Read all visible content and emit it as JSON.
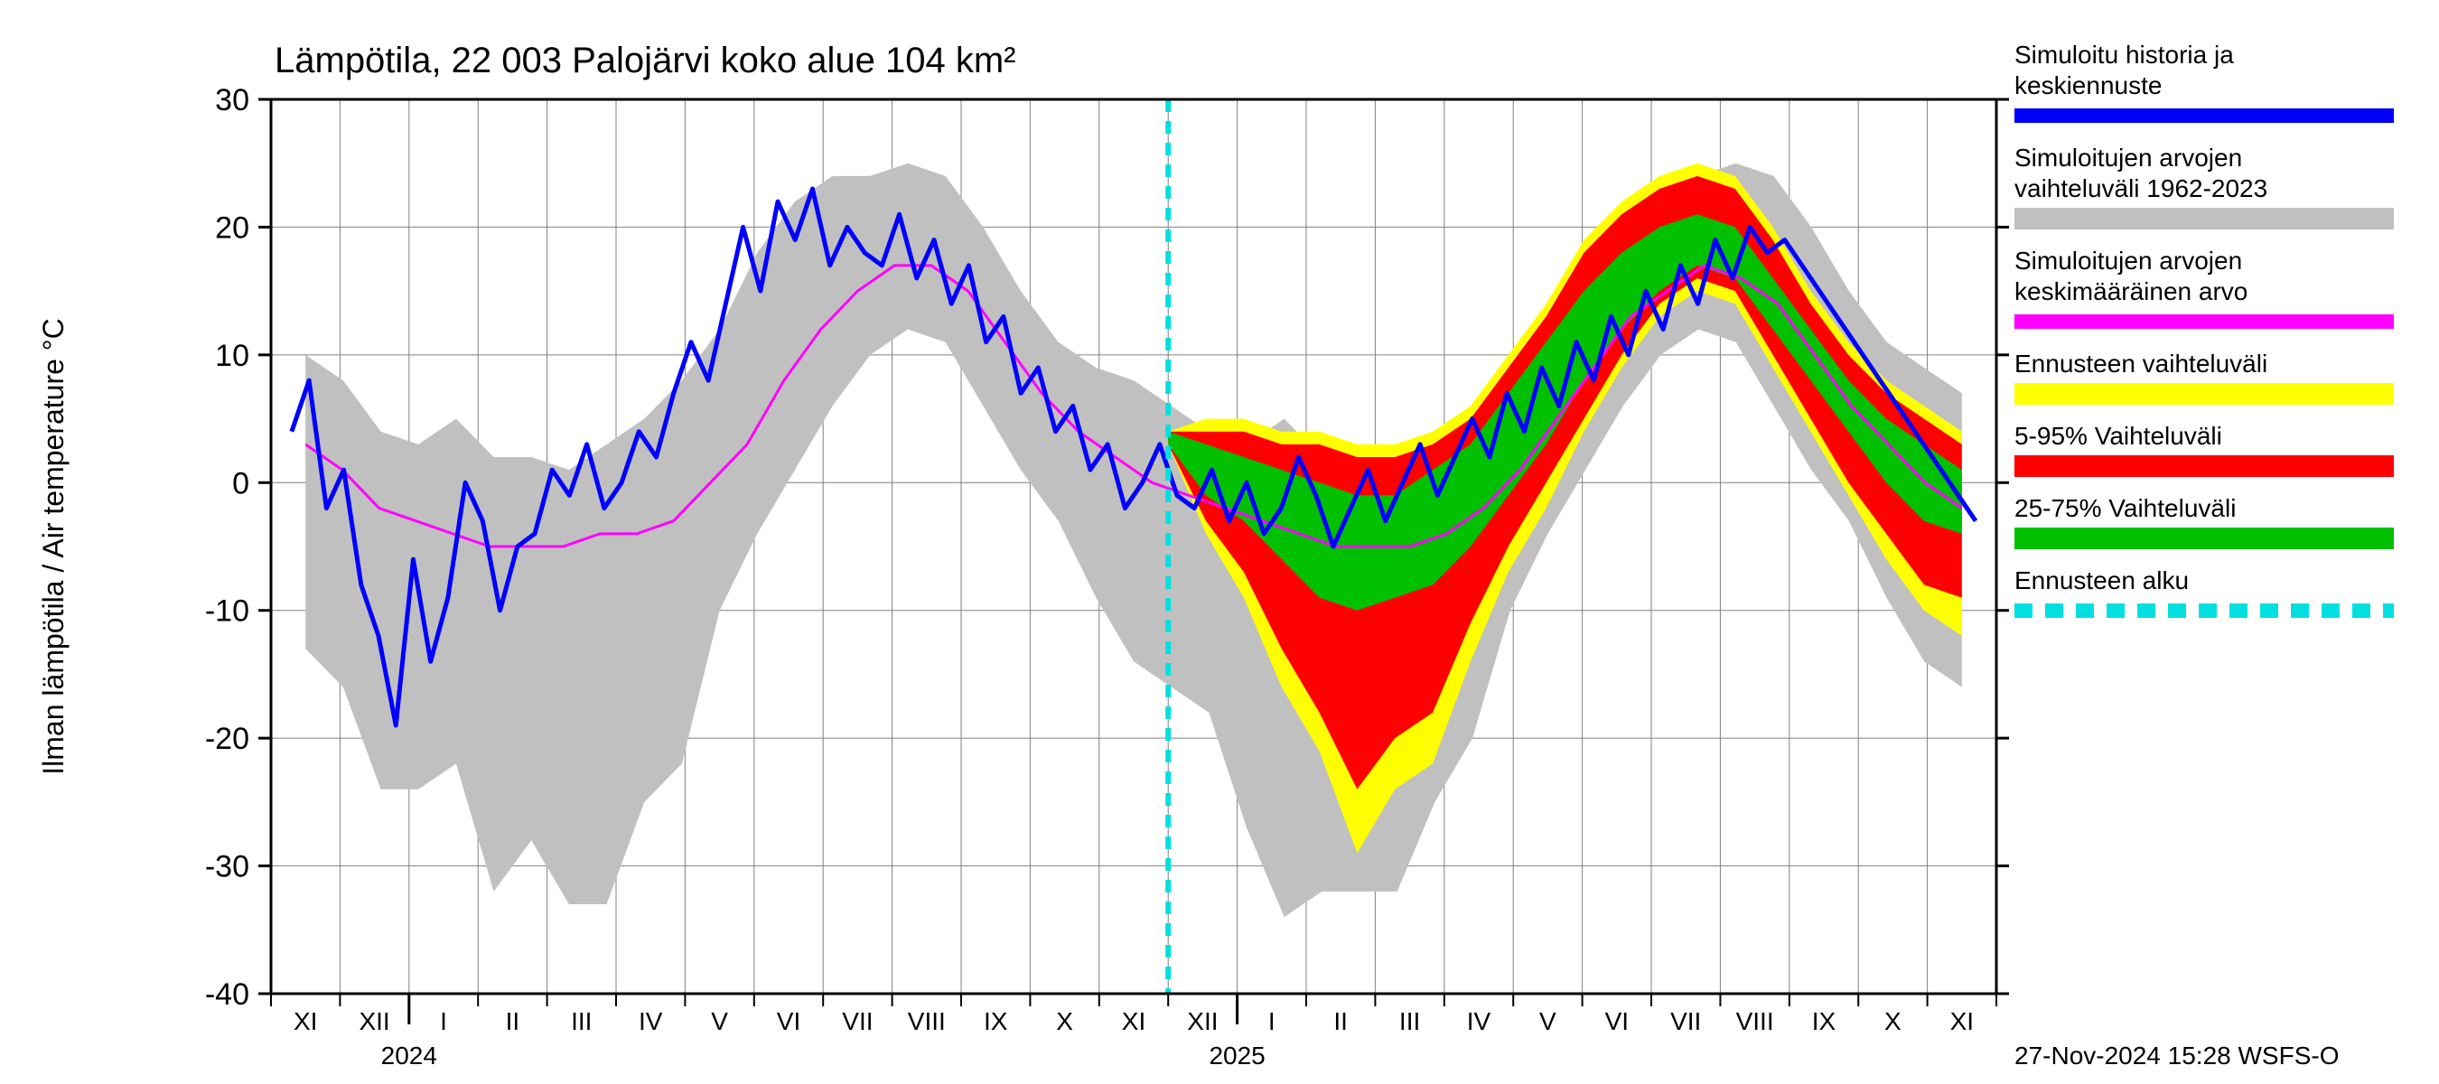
{
  "chart": {
    "type": "timeseries-band",
    "title": "Lämpötila, 22 003 Palojärvi koko alue 104 km²",
    "y_axis": {
      "label": "Ilman lämpötila / Air temperature    °C",
      "min": -40,
      "max": 30,
      "tick_step": 10,
      "ticks": [
        -40,
        -30,
        -20,
        -10,
        0,
        10,
        20,
        30
      ],
      "label_fontsize": 32,
      "tick_fontsize": 28
    },
    "x_axis": {
      "months": [
        "XI",
        "XII",
        "I",
        "II",
        "III",
        "IV",
        "V",
        "VI",
        "VII",
        "VIII",
        "IX",
        "X",
        "XI",
        "XII",
        "I",
        "II",
        "III",
        "IV",
        "V",
        "VI",
        "VII",
        "VIII",
        "IX",
        "X",
        "XI"
      ],
      "year_marks": [
        {
          "after_index": 2,
          "label": "2024"
        },
        {
          "after_index": 14,
          "label": "2025"
        }
      ],
      "tick_fontsize": 28
    },
    "forecast_start_index": 13,
    "grid": {
      "color": "#808080",
      "width": 1
    },
    "background_color": "#ffffff",
    "plot_border_color": "#000000",
    "colors": {
      "hist_range": "#c0c0c0",
      "forecast_range_outer": "#ffff00",
      "forecast_range_5_95": "#ff0000",
      "forecast_range_25_75": "#00c000",
      "mean_line": "#ff00ff",
      "sim_history_line": "#0000ff",
      "forecast_start_line": "#00e0e0"
    },
    "line_widths": {
      "mean_line": 3,
      "sim_history_line": 5,
      "forecast_start_line": 6
    },
    "series_hist_range": {
      "low": [
        -13,
        -16,
        -24,
        -24,
        -22,
        -32,
        -28,
        -33,
        -33,
        -25,
        -22,
        -10,
        -4,
        1,
        6,
        10,
        12,
        11,
        6,
        1,
        -3,
        -9,
        -14,
        -16,
        -18,
        -27,
        -34,
        -32,
        -32,
        -32,
        -25,
        -20,
        -10,
        -4,
        1,
        6,
        10,
        12,
        11,
        6,
        1,
        -3,
        -9,
        -14,
        -16
      ],
      "high": [
        10,
        8,
        4,
        3,
        5,
        2,
        2,
        1,
        3,
        5,
        8,
        12,
        18,
        22,
        24,
        24,
        25,
        24,
        20,
        15,
        11,
        9,
        8,
        6,
        4,
        3,
        5,
        2,
        2,
        1,
        3,
        5,
        8,
        12,
        18,
        22,
        24,
        24,
        25,
        24,
        20,
        15,
        11,
        9,
        7
      ]
    },
    "series_forecast_outer": {
      "low": [
        3,
        -4,
        -9,
        -16,
        -21,
        -29,
        -24,
        -22,
        -14,
        -7,
        -2,
        4,
        9,
        13,
        15,
        14,
        9,
        4,
        -1,
        -6,
        -10,
        -12
      ],
      "high": [
        4,
        5,
        5,
        4,
        4,
        3,
        3,
        4,
        6,
        10,
        14,
        19,
        22,
        24,
        25,
        24,
        20,
        15,
        11,
        8,
        6,
        4
      ]
    },
    "series_forecast_5_95": {
      "low": [
        3,
        -3,
        -7,
        -13,
        -18,
        -24,
        -20,
        -18,
        -11,
        -5,
        0,
        5,
        10,
        14,
        16,
        15,
        10,
        5,
        0,
        -4,
        -8,
        -9
      ],
      "high": [
        4,
        4,
        4,
        3,
        3,
        2,
        2,
        3,
        5,
        9,
        13,
        18,
        21,
        23,
        24,
        23,
        19,
        14,
        10,
        7,
        5,
        3
      ]
    },
    "series_forecast_25_75": {
      "low": [
        3,
        -1,
        -3,
        -6,
        -9,
        -10,
        -9,
        -8,
        -5,
        -1,
        3,
        8,
        12,
        15,
        17,
        16,
        12,
        8,
        4,
        0,
        -3,
        -4
      ],
      "high": [
        4,
        3,
        2,
        1,
        0,
        -1,
        -1,
        1,
        3,
        7,
        11,
        15,
        18,
        20,
        21,
        20,
        16,
        12,
        8,
        5,
        3,
        1
      ]
    },
    "series_mean": {
      "y": [
        3,
        1,
        -2,
        -3,
        -4,
        -5,
        -5,
        -5,
        -4,
        -4,
        -3,
        0,
        3,
        8,
        12,
        15,
        17,
        17,
        15,
        11,
        7,
        4,
        2,
        0,
        -1,
        -2,
        -3,
        -4,
        -5,
        -5,
        -5,
        -4,
        -2,
        1,
        5,
        9,
        13,
        15,
        17,
        16,
        14,
        10,
        6,
        3,
        0,
        -2
      ]
    },
    "series_sim_history": {
      "y": [
        4,
        8,
        -2,
        1,
        -8,
        -12,
        -19,
        -6,
        -14,
        -9,
        0,
        -3,
        -10,
        -5,
        -4,
        1,
        -1,
        3,
        -2,
        0,
        4,
        2,
        7,
        11,
        8,
        14,
        20,
        15,
        22,
        19,
        23,
        17,
        20,
        18,
        17,
        21,
        16,
        19,
        14,
        17,
        11,
        13,
        7,
        9,
        4,
        6,
        1,
        3,
        -2,
        0,
        3,
        -1,
        -2,
        1,
        -3,
        0,
        -4,
        -2,
        2,
        -1,
        -5,
        -2,
        1,
        -3,
        0,
        3,
        -1,
        2,
        5,
        2,
        7,
        4,
        9,
        6,
        11,
        8,
        13,
        10,
        15,
        12,
        17,
        14,
        19,
        16,
        20,
        18,
        19,
        17,
        15,
        13,
        11,
        9,
        7,
        5,
        3,
        1,
        -1,
        -3
      ]
    },
    "legend": {
      "items": [
        {
          "label_line1": "Simuloitu historia ja",
          "label_line2": "keskiennuste",
          "swatch": "sim_history_line",
          "style": "line"
        },
        {
          "label_line1": "Simuloitujen arvojen",
          "label_line2": "vaihteluväli 1962-2023",
          "swatch": "hist_range",
          "style": "block"
        },
        {
          "label_line1": "Simuloitujen arvojen",
          "label_line2": "keskimääräinen arvo",
          "swatch": "mean_line",
          "style": "line"
        },
        {
          "label_line1": "Ennusteen vaihteluväli",
          "label_line2": "",
          "swatch": "forecast_range_outer",
          "style": "block"
        },
        {
          "label_line1": "5-95% Vaihteluväli",
          "label_line2": "",
          "swatch": "forecast_range_5_95",
          "style": "block"
        },
        {
          "label_line1": "25-75% Vaihteluväli",
          "label_line2": "",
          "swatch": "forecast_range_25_75",
          "style": "block"
        },
        {
          "label_line1": "Ennusteen alku",
          "label_line2": "",
          "swatch": "forecast_start_line",
          "style": "dash"
        }
      ],
      "fontsize": 28
    },
    "footer": "27-Nov-2024 15:28 WSFS-O"
  }
}
